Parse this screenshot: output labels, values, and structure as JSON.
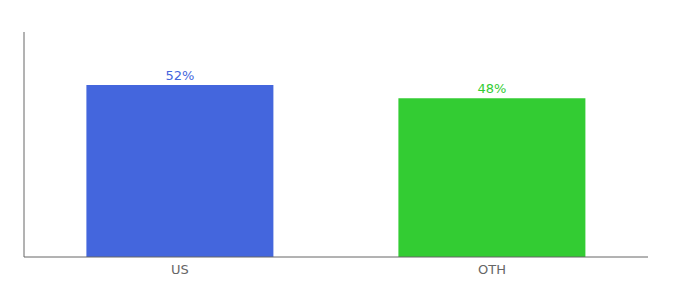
{
  "chart_data": {
    "type": "bar",
    "categories": [
      "US",
      "OTH"
    ],
    "values": [
      52,
      48
    ],
    "value_labels": [
      "52%",
      "48%"
    ],
    "data_labels": true,
    "colors": [
      "#4466dd",
      "#33cc33"
    ],
    "ylim": [
      0,
      68
    ],
    "tick_labels": "x"
  }
}
